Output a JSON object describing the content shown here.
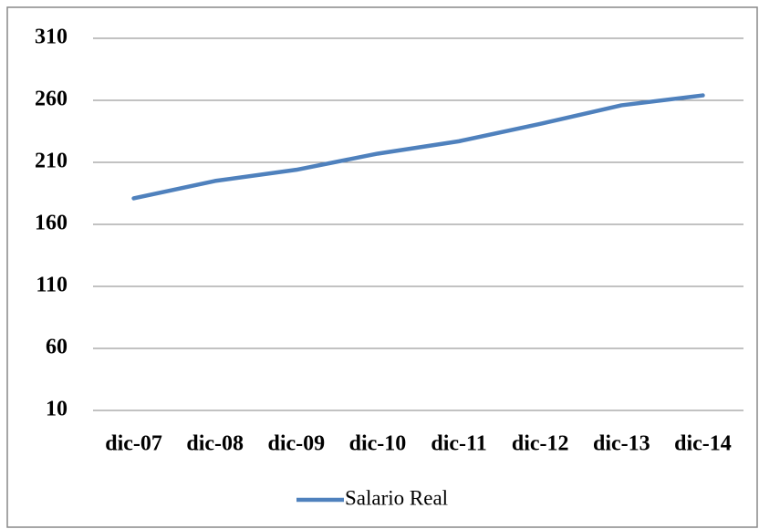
{
  "chart_data": {
    "type": "line",
    "categories": [
      "dic-07",
      "dic-08",
      "dic-09",
      "dic-10",
      "dic-11",
      "dic-12",
      "dic-13",
      "dic-14"
    ],
    "series": [
      {
        "name": "Salario Real",
        "color": "#4f81bd",
        "values": [
          181,
          195,
          204,
          217,
          227,
          241,
          256,
          264
        ]
      }
    ],
    "ylim": [
      10,
      310
    ],
    "yticks": [
      10,
      60,
      110,
      160,
      210,
      260,
      310
    ],
    "grid": true,
    "legend": "bottom"
  }
}
